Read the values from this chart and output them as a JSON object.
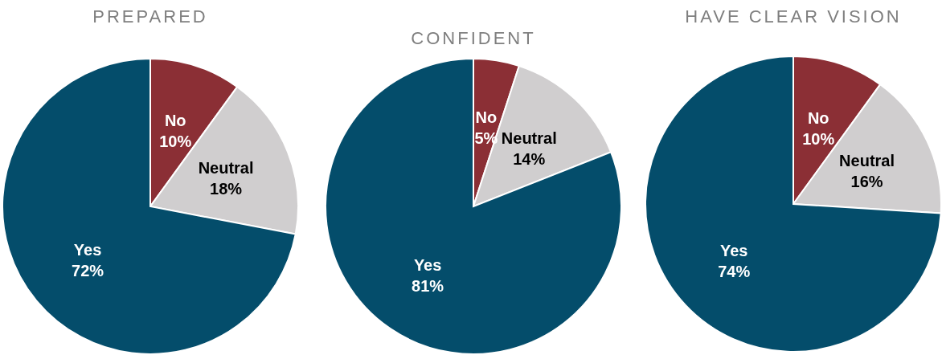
{
  "chart_data": [
    {
      "type": "pie",
      "title": "PREPARED",
      "categories": [
        "No",
        "Neutral",
        "Yes"
      ],
      "values": [
        10,
        18,
        72
      ],
      "value_labels": [
        "10%",
        "18%",
        "72%"
      ],
      "colors": [
        "#8b2f35",
        "#d0cecf",
        "#044d6b"
      ]
    },
    {
      "type": "pie",
      "title": "CONFIDENT",
      "categories": [
        "No",
        "Neutral",
        "Yes"
      ],
      "values": [
        5,
        14,
        81
      ],
      "value_labels": [
        "5%",
        "14%",
        "81%"
      ],
      "colors": [
        "#8b2f35",
        "#d0cecf",
        "#044d6b"
      ]
    },
    {
      "type": "pie",
      "title": "HAVE CLEAR VISION",
      "categories": [
        "No",
        "Neutral",
        "Yes"
      ],
      "values": [
        10,
        16,
        74
      ],
      "value_labels": [
        "10%",
        "16%",
        "74%"
      ],
      "colors": [
        "#8b2f35",
        "#d0cecf",
        "#044d6b"
      ]
    }
  ]
}
